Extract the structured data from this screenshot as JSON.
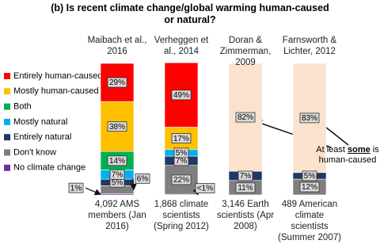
{
  "chart_data": {
    "type": "stacked_bar",
    "title": "(b) Is recent climate change/global warming human-caused or natural?",
    "top_labels": [
      "Maibach et al., 2016",
      "Verheggen et al., 2014",
      "Doran & Zimmerman, 2009",
      "Farnsworth & Lichter, 2012"
    ],
    "categories": [
      "4,092 AMS members (Jan 2016)",
      "1,868 climate scientists (Spring 2012)",
      "3,146 Earth scientists (Apr 2008)",
      "489 American climate scientists (Summer 2007)"
    ],
    "ylim": [
      0,
      100
    ],
    "series": [
      {
        "color": "#fbe2cc",
        "values": [
          null,
          null,
          82,
          83
        ],
        "value_labels": [
          null,
          null,
          "82%",
          "83%"
        ]
      },
      {
        "name": "Entirely human-caused",
        "color": "#ff0000",
        "values": [
          29,
          49,
          null,
          null
        ],
        "value_labels": [
          "29%",
          "49%",
          null,
          null
        ]
      },
      {
        "name": "Mostly human-caused",
        "color": "#ffc000",
        "values": [
          38,
          17,
          null,
          null
        ],
        "value_labels": [
          "38%",
          "17%",
          null,
          null
        ]
      },
      {
        "name": "Both",
        "color": "#00b050",
        "values": [
          14,
          null,
          null,
          null
        ],
        "value_labels": [
          "14%",
          null,
          null,
          null
        ]
      },
      {
        "name": "Mostly natural",
        "color": "#00b0f0",
        "values": [
          7,
          5,
          null,
          null
        ],
        "value_labels": [
          "7%",
          "5%",
          null,
          null
        ]
      },
      {
        "name": "Entirely natural",
        "color": "#1f3864",
        "values": [
          5,
          7,
          7,
          5
        ],
        "value_labels": [
          "5%",
          "7%",
          "7%",
          "5%"
        ]
      },
      {
        "name": "Don't know",
        "color": "#7f7f7f",
        "values": [
          6,
          22,
          11,
          12
        ],
        "value_labels": [
          "6%",
          "22%",
          "11%",
          "12%"
        ]
      },
      {
        "name": "No climate change",
        "color": "#7030a0",
        "values": [
          1,
          0.5,
          null,
          null
        ],
        "value_labels": [
          "1%",
          "<1%",
          null,
          null
        ]
      }
    ],
    "annotation": {
      "parts": [
        "At least ",
        "some",
        " is human-caused"
      ]
    }
  }
}
